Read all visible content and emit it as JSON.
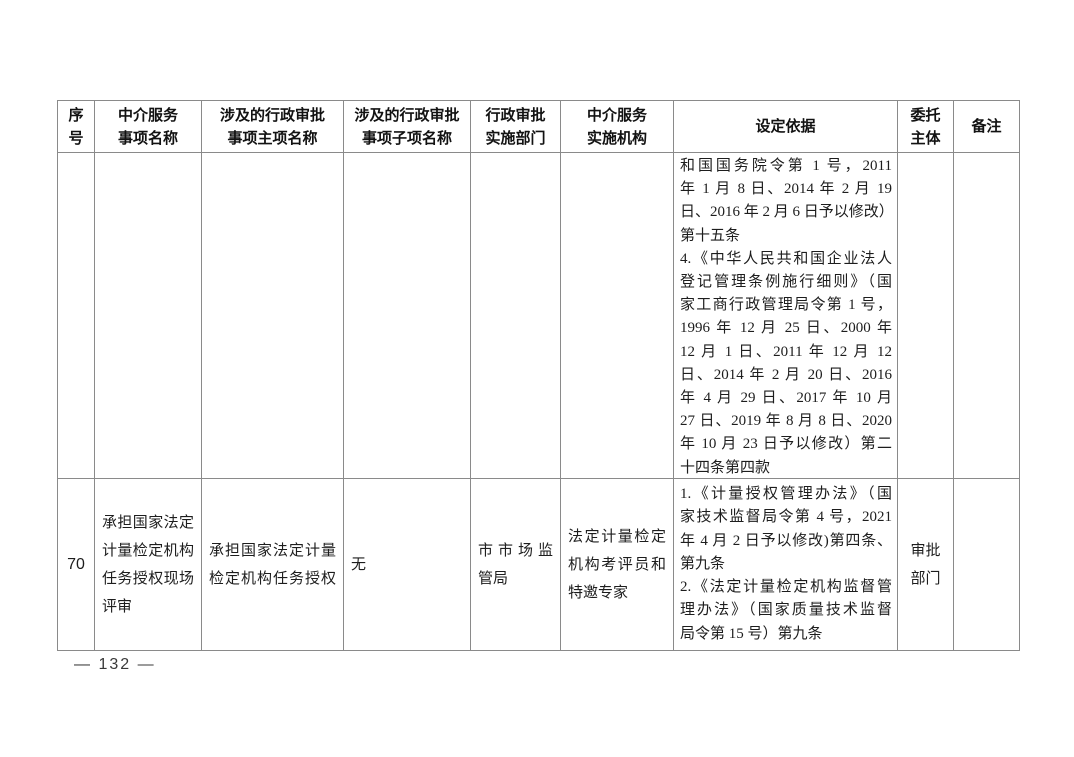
{
  "page": {
    "number_label": "— 132 —"
  },
  "colors": {
    "border": "#8a8a8a",
    "text": "#1d1d1d",
    "background": "#ffffff"
  },
  "table": {
    "headers": [
      "序\n号",
      "中介服务\n事项名称",
      "涉及的行政审批\n事项主项名称",
      "涉及的行政审批\n事项子项名称",
      "行政审批\n实施部门",
      "中介服务\n实施机构",
      "设定依据",
      "委托\n主体",
      "备注"
    ],
    "rows": {
      "continuation": {
        "seq": "",
        "service_name": "",
        "main_item": "",
        "sub_item": "",
        "department": "",
        "agency": "",
        "basis_lines": [
          {
            "t": "和国国务院令第 1 号，2011",
            "f": 1
          },
          {
            "t": "年 1 月 8 日、2014 年 2 月 19",
            "f": 1
          },
          {
            "t": "日、2016 年 2 月 6 日予以修改）",
            "f": 1
          },
          {
            "t": "第十五条",
            "f": 0
          },
          {
            "t": "4.《中华人民共和国企业法人",
            "f": 1
          },
          {
            "t": "登记管理条例施行细则》（国",
            "f": 1
          },
          {
            "t": "家工商行政管理局令第 1 号，",
            "f": 1
          },
          {
            "t": "1996 年 12 月 25 日、2000 年",
            "f": 1
          },
          {
            "t": "12 月 1 日、2011 年 12 月 12",
            "f": 1
          },
          {
            "t": "日、2014 年 2 月 20 日、2016",
            "f": 1
          },
          {
            "t": "年 4 月 29 日、2017 年 10 月",
            "f": 1
          },
          {
            "t": "27 日、2019 年 8 月 8 日、2020",
            "f": 1
          },
          {
            "t": "年 10 月 23 日予以修改）第二",
            "f": 1
          },
          {
            "t": "十四条第四款",
            "f": 0
          }
        ],
        "entrusting": "",
        "remark": ""
      },
      "row70": {
        "seq": "70",
        "service_name_lines": [
          {
            "t": "承担国家法定",
            "f": 1
          },
          {
            "t": "计量检定机构",
            "f": 1
          },
          {
            "t": "任务授权现场",
            "f": 1
          },
          {
            "t": "评审",
            "f": 0
          }
        ],
        "main_item_lines": [
          {
            "t": "承担国家法定计量",
            "f": 1
          },
          {
            "t": "检定机构任务授权",
            "f": 1
          }
        ],
        "sub_item": "无",
        "department_lines": [
          {
            "t": "市市场监",
            "f": 1
          },
          {
            "t": "管局",
            "f": 0
          }
        ],
        "agency_lines": [
          {
            "t": "法定计量检定",
            "f": 1
          },
          {
            "t": "机构考评员和",
            "f": 1
          },
          {
            "t": "特邀专家",
            "f": 0
          }
        ],
        "basis_lines": [
          {
            "t": "1.《计量授权管理办法》（国",
            "f": 1
          },
          {
            "t": "家技术监督局令第 4 号，2021",
            "f": 1
          },
          {
            "t": "年 4 月 2 日予以修改)第四条、",
            "f": 1
          },
          {
            "t": "第九条",
            "f": 0
          },
          {
            "t": "2.《法定计量检定机构监督管",
            "f": 1
          },
          {
            "t": "理办法》（国家质量技术监督",
            "f": 1
          },
          {
            "t": "局令第 15 号）第九条",
            "f": 0
          }
        ],
        "entrusting_lines": [
          {
            "t": "审批",
            "f": 0
          },
          {
            "t": "部门",
            "f": 0
          }
        ],
        "remark": ""
      }
    }
  }
}
